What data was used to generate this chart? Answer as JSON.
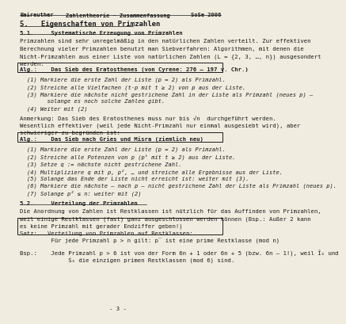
{
  "bg_color": "#f0ede0",
  "text_color": "#1a1a1a",
  "header_left": "Baireuther",
  "header_center": "Zahlentheorie - Zusammenfassung",
  "header_right": "SoSe 2006",
  "footer": "- 3 -",
  "section5_title": "5.   Eigenschaften von Primzahlen",
  "section51_title": "5.1.     Systematische Erzeugung von Primzahlen",
  "para1_lines": [
    "Primzahlen sind sehr unregelmäßig in den natürlichen Zahlen verteilt. Zur effektiven",
    "Berechnung vieler Primzahlen benutzt man Siebverfahren: Algorithmen, mit denen die",
    "Nicht-Primzahlen aus einer Liste von natürlichen Zahlen (L = {2, 3, …, n}) ausgesondert",
    "werden."
  ],
  "alg1_title": "Alg.:    Das Sieb des Eratosthenes (von Cyrene: 276 – 197 v. Chr.)",
  "alg1_steps": [
    "(1) Markiere die erste Zahl der Liste (p = 2) als Primzahl.",
    "(2) Streiche alle Vielfachen (t·p mit t ≥ 2) von p aus der Liste.",
    "(3) Markiere die nächste nicht gestrichene Zahl in der Liste als Primzahl (neues p) –",
    "      solange es noch solche Zahlen gibt.",
    "(4) Weiter mit (2)"
  ],
  "anmerkung": "Anmerkung: Das Sieb des Eratosthenes muss nur bis √n  durchgeführt werden.",
  "wesentlich_lines": [
    "Wesentlich effektiver (weil jede Nicht-Primzahl nur einmal ausgesiebt wird), aber",
    "schwieriger zu begründen ist:"
  ],
  "alg2_title": "Alg.:    Das Sieb nach Gries und Misra (ziemlich neu)",
  "alg2_steps": [
    "(1) Markiere die erste Zahl der Liste (p = 2) als Primzahl.",
    "(2) Streiche alle Potenzen von p (pᵗ mit t ≥ 2) aus der Liste.",
    "(3) Setze q := nächste nicht gestrichene Zahl.",
    "(4) Multipliziere q mit p, p², … und streiche alle Ergebnisse aus der Liste.",
    "(5) Solange das Ende der Liste nicht erreicht ist: weiter mit (3).",
    "(6) Markiere die nächste – nach p – nicht gestrichene Zahl der Liste als Primzahl (neues p).",
    "(7) Solange p² ≤ n: weiter mit (2)"
  ],
  "section52_title": "5.2.     Verteilung der Primzahlen",
  "para2_lines": [
    "Die Anordnung von Zahlen ist Restklassen ist nützlich für das Auffinden von Primzahlen,",
    "weil einige Restklassen (fast) ganz ausgeschlossen werden können (Bsp.: Außer 2 kann",
    "es keine Primzahl mit gerader Endziffer geben!)"
  ],
  "satz_title": "Satz:   Verteilung von Primzahlen auf Restklassen:",
  "satz_body": "         Für jede Primzahl p > n gilt: p̅ ist eine prime Restklasse (mod n)",
  "bsp_lines": [
    "Bsp.:    Jede Primzahl p > 6 ist von der Form 6n + 1 oder 6n + 5 (bzw. 6n – 1!), weil Ī₆ und",
    "              Ś₆ die einzigen primen Restklassen (mod 6) sind."
  ],
  "lm": 0.055,
  "rm": 0.97,
  "fs_header": 5.0,
  "fs_body": 5.2,
  "fs_section": 6.5,
  "line_step": 0.03
}
